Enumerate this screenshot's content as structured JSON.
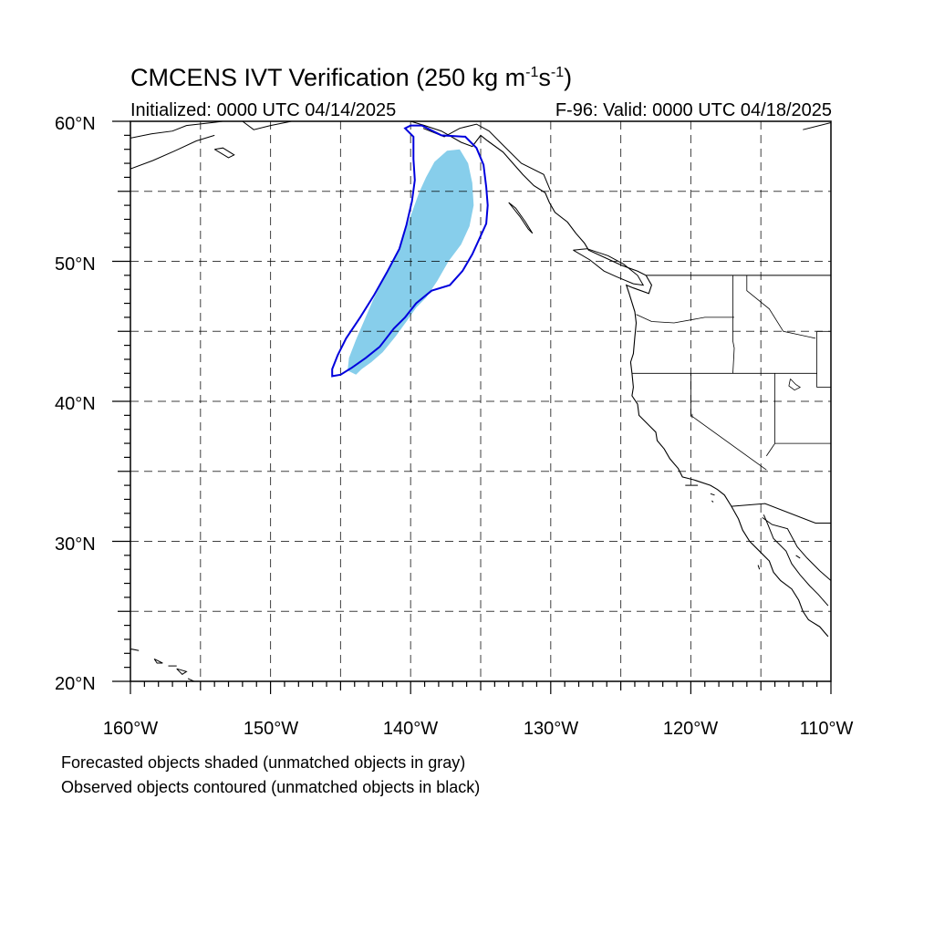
{
  "title": {
    "main": "CMCENS IVT Verification (250 kg m",
    "sup1": "-1",
    "mid": "s",
    "sup2": "-1",
    "end": ")"
  },
  "initialized": "Initialized: 0000 UTC 04/14/2025",
  "valid": "F-96: Valid: 0000 UTC 04/18/2025",
  "lat_labels": [
    "60°N",
    "50°N",
    "40°N",
    "30°N",
    "20°N"
  ],
  "lon_labels": [
    "160°W",
    "150°W",
    "140°W",
    "130°W",
    "120°W",
    "110°W"
  ],
  "captions": [
    "Forecasted objects shaded (unmatched objects in gray)",
    "Observed objects contoured (unmatched objects in black)"
  ],
  "map": {
    "lon_range": [
      -160,
      -110
    ],
    "lat_range": [
      20,
      60
    ],
    "colors": {
      "forecast_shade": "#87ceeb",
      "observed_contour": "#0000dd",
      "grid": "#000000",
      "coast": "#000000"
    },
    "forecast_object": [
      [
        -143.9,
        41.9
      ],
      [
        -143.5,
        42.3
      ],
      [
        -142.8,
        42.8
      ],
      [
        -142.0,
        43.5
      ],
      [
        -141.1,
        44.6
      ],
      [
        -140.3,
        45.7
      ],
      [
        -139.6,
        46.7
      ],
      [
        -138.9,
        47.4
      ],
      [
        -138.1,
        48.6
      ],
      [
        -137.3,
        50.0
      ],
      [
        -136.4,
        51.2
      ],
      [
        -135.8,
        52.5
      ],
      [
        -135.5,
        54.0
      ],
      [
        -135.6,
        55.6
      ],
      [
        -135.9,
        57.0
      ],
      [
        -136.5,
        58.0
      ],
      [
        -137.4,
        57.9
      ],
      [
        -138.3,
        57.1
      ],
      [
        -138.9,
        56.0
      ],
      [
        -139.4,
        54.9
      ],
      [
        -139.8,
        53.8
      ],
      [
        -140.2,
        52.7
      ],
      [
        -140.6,
        51.5
      ],
      [
        -141.2,
        50.1
      ],
      [
        -142.0,
        48.6
      ],
      [
        -142.7,
        47.2
      ],
      [
        -143.3,
        45.8
      ],
      [
        -143.9,
        44.4
      ],
      [
        -144.4,
        43.1
      ],
      [
        -144.5,
        42.2
      ]
    ],
    "observed_object": [
      [
        -145.6,
        42.3
      ],
      [
        -145.6,
        41.8
      ],
      [
        -145.0,
        41.9
      ],
      [
        -144.2,
        42.4
      ],
      [
        -143.2,
        43.1
      ],
      [
        -142.2,
        43.9
      ],
      [
        -141.2,
        45.2
      ],
      [
        -140.4,
        46.0
      ],
      [
        -139.6,
        47.0
      ],
      [
        -138.5,
        47.9
      ],
      [
        -137.2,
        48.3
      ],
      [
        -136.3,
        49.3
      ],
      [
        -135.6,
        50.5
      ],
      [
        -135.1,
        51.6
      ],
      [
        -134.6,
        52.7
      ],
      [
        -134.5,
        54.0
      ],
      [
        -134.6,
        55.3
      ],
      [
        -134.8,
        56.9
      ],
      [
        -135.3,
        58.1
      ],
      [
        -136.1,
        58.9
      ],
      [
        -137.8,
        59.0
      ],
      [
        -139.2,
        59.7
      ],
      [
        -140.0,
        59.7
      ],
      [
        -140.4,
        59.5
      ],
      [
        -139.8,
        58.9
      ],
      [
        -139.8,
        57.3
      ],
      [
        -139.7,
        55.8
      ],
      [
        -139.9,
        54.3
      ],
      [
        -140.3,
        52.6
      ],
      [
        -140.8,
        50.9
      ],
      [
        -141.7,
        49.2
      ],
      [
        -142.6,
        47.6
      ],
      [
        -143.6,
        46.0
      ],
      [
        -144.6,
        44.5
      ],
      [
        -145.2,
        43.3
      ]
    ],
    "coastline": [
      [
        -140.0,
        60.0
      ],
      [
        -139.0,
        59.7
      ],
      [
        -137.8,
        59.3
      ],
      [
        -136.4,
        58.5
      ],
      [
        -135.6,
        58.2
      ],
      [
        -135.0,
        59.0
      ],
      [
        -134.5,
        58.6
      ],
      [
        -133.4,
        57.8
      ],
      [
        -132.7,
        57.0
      ],
      [
        -132.0,
        56.2
      ],
      [
        -131.2,
        55.4
      ],
      [
        -130.4,
        54.9
      ],
      [
        -130.1,
        54.2
      ],
      [
        -129.7,
        53.5
      ],
      [
        -128.8,
        52.8
      ],
      [
        -128.2,
        52.0
      ],
      [
        -127.6,
        51.3
      ],
      [
        -127.3,
        50.8
      ],
      [
        -126.0,
        50.2
      ],
      [
        -124.9,
        49.7
      ],
      [
        -123.8,
        49.3
      ],
      [
        -123.2,
        49.0
      ],
      [
        -122.8,
        48.3
      ],
      [
        -123.0,
        47.7
      ],
      [
        -124.1,
        48.1
      ],
      [
        -124.6,
        48.3
      ],
      [
        -124.4,
        47.7
      ],
      [
        -124.0,
        46.4
      ],
      [
        -123.9,
        45.6
      ],
      [
        -124.0,
        44.6
      ],
      [
        -124.1,
        43.4
      ],
      [
        -124.3,
        42.8
      ],
      [
        -124.2,
        42.0
      ],
      [
        -124.1,
        41.0
      ],
      [
        -124.2,
        40.4
      ],
      [
        -123.8,
        39.8
      ],
      [
        -123.7,
        39.0
      ],
      [
        -123.0,
        38.3
      ],
      [
        -122.5,
        37.8
      ],
      [
        -122.4,
        37.2
      ],
      [
        -121.9,
        36.6
      ],
      [
        -121.5,
        35.9
      ],
      [
        -120.9,
        35.2
      ],
      [
        -120.6,
        34.6
      ],
      [
        -119.8,
        34.4
      ],
      [
        -118.6,
        34.0
      ],
      [
        -118.1,
        33.7
      ],
      [
        -117.6,
        33.3
      ],
      [
        -117.1,
        32.5
      ],
      [
        -116.6,
        31.6
      ],
      [
        -116.3,
        30.8
      ],
      [
        -115.8,
        30.0
      ],
      [
        -115.0,
        29.2
      ],
      [
        -114.4,
        28.6
      ],
      [
        -114.1,
        27.8
      ],
      [
        -113.6,
        27.2
      ],
      [
        -112.8,
        26.6
      ],
      [
        -112.3,
        25.8
      ],
      [
        -112.0,
        25.0
      ],
      [
        -111.6,
        24.4
      ],
      [
        -110.8,
        23.9
      ],
      [
        -110.2,
        23.2
      ]
    ],
    "gulf_coast": [
      [
        -114.8,
        31.9
      ],
      [
        -114.5,
        31.2
      ],
      [
        -114.1,
        30.2
      ],
      [
        -113.2,
        29.3
      ],
      [
        -112.8,
        28.4
      ],
      [
        -112.2,
        27.6
      ],
      [
        -111.5,
        26.8
      ],
      [
        -110.9,
        26.2
      ],
      [
        -110.2,
        25.4
      ]
    ],
    "mainland_coast": [
      [
        -114.9,
        31.7
      ],
      [
        -114.2,
        31.2
      ],
      [
        -113.1,
        30.9
      ],
      [
        -112.4,
        29.6
      ],
      [
        -111.7,
        28.8
      ],
      [
        -110.8,
        27.9
      ],
      [
        -110.0,
        27.2
      ]
    ],
    "borders": [
      [
        [
          -123.2,
          49.0
        ],
        [
          -110.0,
          49.0
        ]
      ],
      [
        [
          -117.1,
          32.5
        ],
        [
          -114.7,
          32.7
        ],
        [
          -111.1,
          31.3
        ],
        [
          -110.0,
          31.3
        ]
      ],
      [
        [
          -141.0,
          60.0
        ],
        [
          -141.0,
          60.0
        ]
      ],
      [
        [
          -139.1,
          59.5
        ],
        [
          -137.6,
          58.9
        ],
        [
          -136.5,
          59.5
        ],
        [
          -135.3,
          59.8
        ],
        [
          -134.4,
          59.3
        ],
        [
          -133.5,
          58.4
        ],
        [
          -132.1,
          57.0
        ],
        [
          -130.5,
          56.2
        ],
        [
          -130.0,
          55.0
        ]
      ]
    ],
    "state_lines": [
      [
        [
          -124.2,
          42.0
        ],
        [
          -111.0,
          42.0
        ]
      ],
      [
        [
          -120.0,
          42.0
        ],
        [
          -120.0,
          39.0
        ],
        [
          -114.6,
          35.1
        ]
      ],
      [
        [
          -116.9,
          46.0
        ],
        [
          -119.0,
          46.0
        ],
        [
          -121.2,
          45.6
        ],
        [
          -122.8,
          45.7
        ],
        [
          -123.9,
          46.2
        ]
      ],
      [
        [
          -117.0,
          49.0
        ],
        [
          -117.0,
          44.3
        ],
        [
          -116.9,
          43.8
        ],
        [
          -117.0,
          42.0
        ]
      ],
      [
        [
          -116.0,
          49.0
        ],
        [
          -116.0,
          47.9
        ],
        [
          -114.4,
          46.6
        ],
        [
          -113.4,
          45.0
        ],
        [
          -111.1,
          44.5
        ]
      ],
      [
        [
          -114.0,
          42.0
        ],
        [
          -114.0,
          37.0
        ],
        [
          -114.6,
          36.1
        ]
      ],
      [
        [
          -114.0,
          37.0
        ],
        [
          -110.0,
          37.0
        ]
      ],
      [
        [
          -111.0,
          45.0
        ],
        [
          -110.0,
          45.0
        ]
      ],
      [
        [
          -111.0,
          41.0
        ],
        [
          -111.0,
          45.0
        ]
      ],
      [
        [
          -111.0,
          41.0
        ],
        [
          -110.0,
          41.0
        ]
      ]
    ],
    "inland_lakes": [
      [
        [
          -112.9,
          41.6
        ],
        [
          -112.5,
          41.2
        ],
        [
          -112.2,
          41.0
        ],
        [
          -112.6,
          40.8
        ],
        [
          -113.0,
          41.1
        ],
        [
          -112.9,
          41.6
        ]
      ],
      [
        [
          -119.9,
          39.1
        ],
        [
          -119.9,
          38.8
        ]
      ]
    ],
    "alaska_coast": [
      [
        [
          -160.0,
          58.8
        ],
        [
          -158.5,
          59.1
        ],
        [
          -157.0,
          59.3
        ],
        [
          -156.0,
          59.7
        ],
        [
          -154.2,
          59.9
        ],
        [
          -153.4,
          60.0
        ]
      ],
      [
        [
          -160.0,
          56.6
        ],
        [
          -158.4,
          57.2
        ],
        [
          -156.8,
          57.9
        ],
        [
          -155.3,
          58.6
        ],
        [
          -154.0,
          59.0
        ]
      ],
      [
        [
          -154.0,
          58.0
        ],
        [
          -153.0,
          57.4
        ],
        [
          -152.6,
          57.6
        ],
        [
          -153.4,
          58.1
        ],
        [
          -154.0,
          58.0
        ]
      ],
      [
        [
          -152.0,
          60.0
        ],
        [
          -151.2,
          59.4
        ],
        [
          -150.0,
          59.7
        ],
        [
          -148.5,
          60.0
        ]
      ],
      [
        [
          -146.5,
          60.0
        ],
        [
          -144.8,
          60.0
        ]
      ],
      [
        [
          -112.0,
          59.4
        ],
        [
          -110.0,
          59.9
        ]
      ]
    ],
    "haida_gwaii": [
      [
        [
          -133.0,
          54.2
        ],
        [
          -132.2,
          53.2
        ],
        [
          -131.6,
          52.3
        ],
        [
          -131.3,
          52.0
        ],
        [
          -131.8,
          52.8
        ],
        [
          -132.5,
          53.8
        ],
        [
          -133.0,
          54.2
        ]
      ]
    ],
    "vancouver_island": [
      [
        [
          -128.4,
          50.8
        ],
        [
          -127.2,
          50.1
        ],
        [
          -126.2,
          49.3
        ],
        [
          -125.3,
          48.9
        ],
        [
          -124.1,
          48.4
        ],
        [
          -123.4,
          48.3
        ],
        [
          -123.8,
          49.0
        ],
        [
          -124.8,
          49.8
        ],
        [
          -125.9,
          50.4
        ],
        [
          -127.4,
          50.9
        ],
        [
          -128.4,
          50.8
        ]
      ]
    ],
    "hawaii": [
      [
        [
          -160.5,
          22.1
        ],
        [
          -159.9,
          22.3
        ],
        [
          -159.4,
          22.2
        ]
      ],
      [
        [
          -158.3,
          21.6
        ],
        [
          -157.7,
          21.3
        ],
        [
          -158.1,
          21.3
        ],
        [
          -158.3,
          21.6
        ]
      ],
      [
        [
          -157.3,
          21.1
        ],
        [
          -156.7,
          21.1
        ]
      ],
      [
        [
          -156.7,
          20.9
        ],
        [
          -156.0,
          20.7
        ],
        [
          -156.3,
          20.5
        ],
        [
          -156.7,
          20.9
        ]
      ],
      [
        [
          -155.9,
          20.2
        ],
        [
          -155.0,
          19.8
        ],
        [
          -154.8,
          19.5
        ]
      ]
    ],
    "islands": [
      [
        [
          -120.4,
          34.0
        ],
        [
          -119.5,
          34.0
        ]
      ],
      [
        [
          -118.6,
          33.4
        ],
        [
          -118.3,
          33.3
        ]
      ],
      [
        [
          -118.5,
          32.9
        ],
        [
          -118.4,
          32.8
        ]
      ],
      [
        [
          -115.2,
          28.3
        ],
        [
          -115.1,
          28.0
        ]
      ],
      [
        [
          -112.5,
          29.0
        ],
        [
          -112.2,
          28.8
        ]
      ]
    ]
  }
}
